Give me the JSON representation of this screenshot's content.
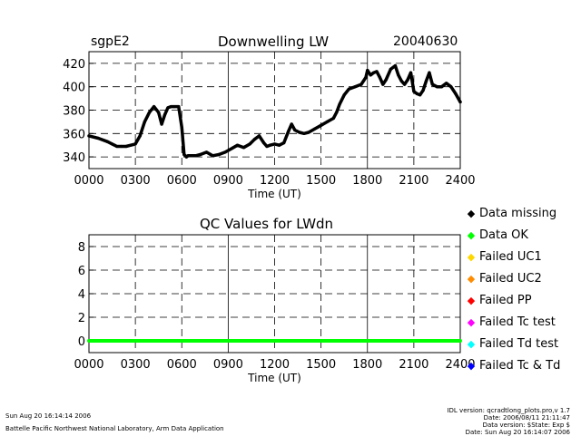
{
  "header": {
    "site": "sgpE2",
    "date": "20040630"
  },
  "chart_data": [
    {
      "type": "line",
      "title": "Downwelling LW",
      "xlabel": "Time (UT)",
      "ylabel": "",
      "xlim": [
        0,
        2400
      ],
      "ylim": [
        330,
        430
      ],
      "x_ticks": [
        "0000",
        "0300",
        "0600",
        "0900",
        "1200",
        "1500",
        "1800",
        "2100",
        "2400"
      ],
      "y_ticks": [
        "340",
        "360",
        "380",
        "400",
        "420"
      ],
      "series": [
        {
          "color": "#000000",
          "x": [
            0,
            60,
            120,
            150,
            180,
            210,
            240,
            270,
            300,
            330,
            360,
            390,
            420,
            450,
            470,
            490,
            510,
            530,
            550,
            580,
            600,
            615,
            630,
            640,
            660,
            690,
            720,
            760,
            800,
            840,
            880,
            920,
            960,
            1000,
            1040,
            1070,
            1100,
            1130,
            1150,
            1170,
            1200,
            1230,
            1260,
            1290,
            1310,
            1330,
            1360,
            1390,
            1420,
            1460,
            1500,
            1540,
            1580,
            1600,
            1620,
            1650,
            1680,
            1720,
            1760,
            1790,
            1800,
            1820,
            1840,
            1860,
            1880,
            1900,
            1920,
            1950,
            1980,
            2000,
            2020,
            2040,
            2060,
            2080,
            2100,
            2120,
            2140,
            2160,
            2180,
            2200,
            2220,
            2250,
            2280,
            2310,
            2340,
            2370,
            2400
          ],
          "y": [
            358,
            356,
            353,
            351,
            349,
            349,
            349,
            350,
            351,
            358,
            370,
            378,
            383,
            378,
            368,
            376,
            382,
            383,
            383,
            383,
            365,
            342,
            340,
            341,
            341,
            341,
            342,
            344,
            341,
            342,
            344,
            347,
            350,
            348,
            351,
            355,
            358,
            352,
            349,
            350,
            351,
            350,
            352,
            362,
            368,
            363,
            361,
            360,
            361,
            364,
            367,
            370,
            373,
            378,
            385,
            393,
            398,
            400,
            402,
            408,
            414,
            410,
            412,
            413,
            408,
            402,
            406,
            415,
            418,
            410,
            405,
            402,
            406,
            412,
            396,
            394,
            393,
            397,
            405,
            412,
            402,
            400,
            400,
            403,
            400,
            394,
            387
          ]
        }
      ]
    },
    {
      "type": "scatter",
      "title": "QC Values for LWdn",
      "xlabel": "Time (UT)",
      "ylabel": "",
      "xlim": [
        0,
        2400
      ],
      "ylim": [
        -1,
        9
      ],
      "x_ticks": [
        "0000",
        "0300",
        "0600",
        "0900",
        "1200",
        "1500",
        "1800",
        "2100",
        "2400"
      ],
      "y_ticks": [
        "0",
        "2",
        "4",
        "6",
        "8"
      ],
      "series": [
        {
          "color": "#00ff00",
          "x": [
            0,
            2400
          ],
          "y": [
            0,
            0
          ]
        }
      ]
    }
  ],
  "legend": [
    {
      "label": "Data missing",
      "color": "#000000"
    },
    {
      "label": "Data OK",
      "color": "#00ff00"
    },
    {
      "label": "Failed UC1",
      "color": "#ffd700"
    },
    {
      "label": "Failed UC2",
      "color": "#ff8c00"
    },
    {
      "label": "Failed PP",
      "color": "#ff0000"
    },
    {
      "label": "Failed Tc test",
      "color": "#ff00ff"
    },
    {
      "label": "Failed Td test",
      "color": "#00ffff"
    },
    {
      "label": "Failed Tc & Td",
      "color": "#0000ff"
    }
  ],
  "footer": {
    "left_line1": "Sun Aug 20 16:14:14 2006",
    "left_line2": "Battelle Pacific Northwest National Laboratory, Arm Data Application",
    "right_line1": "IDL version: qcradtlong_plots.pro,v 1.7",
    "right_line2": "Date: 2006/08/11 21:11:47",
    "right_line3": "Data version: $State: Exp $",
    "right_line4": "Date: Sun Aug 20 16:14:07 2006"
  }
}
